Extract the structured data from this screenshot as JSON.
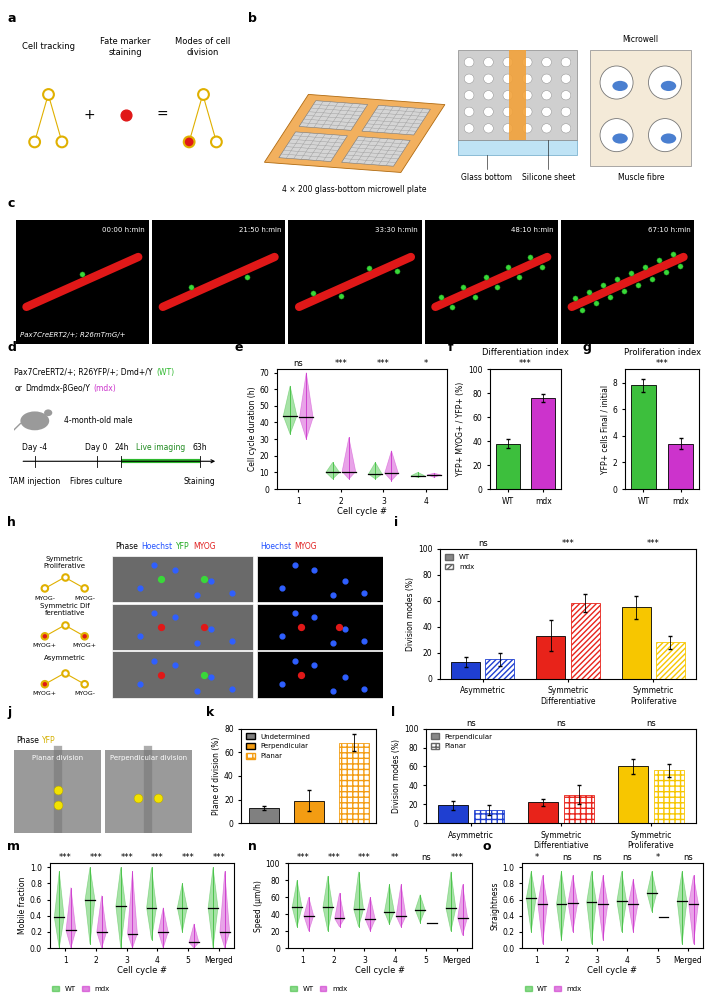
{
  "chart_data": [
    {
      "panel": "e",
      "type": "violin",
      "xlabel": "Cell cycle #",
      "ylabel": "Cell cycle duration (h)",
      "categories": [
        "1",
        "2",
        "3",
        "4"
      ],
      "ylim": [
        0,
        72
      ],
      "yticks": [
        0,
        10,
        20,
        30,
        40,
        50,
        60,
        70
      ],
      "annotations": [
        "ns",
        "***",
        "***",
        "*"
      ],
      "series": [
        {
          "color": "#3dbf3d",
          "median": [
            44,
            10,
            9,
            8
          ],
          "min": [
            33,
            6,
            6,
            7
          ],
          "max": [
            62,
            16,
            16,
            10
          ]
        },
        {
          "color": "#cc33cc",
          "median": [
            43,
            10.5,
            9.5,
            8.5
          ],
          "min": [
            30,
            6,
            5,
            7
          ],
          "max": [
            70,
            31,
            23,
            9.5
          ]
        }
      ]
    },
    {
      "panel": "f",
      "type": "bar",
      "title": "Differentiation index",
      "ylabel": "YFP+ MYOG+ / YFP+ (%)",
      "categories": [
        "WT",
        "mdx"
      ],
      "ylim": [
        0,
        100
      ],
      "yticks": [
        0,
        20,
        40,
        60,
        80,
        100
      ],
      "annotations": [
        "***"
      ],
      "series": [
        {
          "values": [
            38,
            76
          ],
          "errors": [
            4,
            3
          ],
          "colors": [
            "#3dbf3d",
            "#cc33cc"
          ]
        }
      ]
    },
    {
      "panel": "g",
      "type": "bar",
      "title": "Proliferation index",
      "ylabel": "YFP+ cells Final / initial",
      "categories": [
        "WT",
        "mdx"
      ],
      "ylim": [
        0,
        9
      ],
      "yticks": [
        0,
        2,
        4,
        6,
        8
      ],
      "annotations": [
        "***"
      ],
      "series": [
        {
          "values": [
            7.8,
            3.4
          ],
          "errors": [
            0.5,
            0.4
          ],
          "colors": [
            "#3dbf3d",
            "#cc33cc"
          ]
        }
      ]
    },
    {
      "panel": "i",
      "type": "bar",
      "ylabel": "Division modes (%)",
      "categories": [
        "Asymmetric",
        "Symmetric Differentiative",
        "Symmetric Proliferative"
      ],
      "ylim": [
        0,
        100
      ],
      "yticks": [
        0,
        20,
        40,
        60,
        80,
        100
      ],
      "legend": "upper left",
      "annotations": [
        "ns",
        "***",
        "***"
      ],
      "series": [
        {
          "name": "WT",
          "values": [
            13,
            33,
            55
          ],
          "errors": [
            4,
            12,
            9
          ],
          "colors": [
            "#1f3fd1",
            "#e8231a",
            "#f7c600"
          ]
        },
        {
          "name": "mdx",
          "values": [
            15,
            58,
            28
          ],
          "errors": [
            5,
            7,
            5
          ],
          "colors": [
            "#1f3fd1",
            "#e8231a",
            "#f7c600"
          ]
        }
      ]
    },
    {
      "panel": "k",
      "type": "bar",
      "ylabel": "Plane of division (%)",
      "categories": [
        "Undetermined",
        "Perpendicular",
        "Planar"
      ],
      "ylim": [
        0,
        80
      ],
      "yticks": [
        0,
        20,
        40,
        60,
        80
      ],
      "legend": "upper left",
      "tick_labels": "y",
      "series": [
        {
          "values": [
            13,
            19,
            68
          ],
          "errors": [
            2,
            9,
            7
          ],
          "colors": [
            "#808080",
            "#f39c12",
            "#f39c12"
          ]
        }
      ]
    },
    {
      "panel": "l",
      "type": "bar",
      "ylabel": "Division modes (%)",
      "categories": [
        "Asymmetric",
        "Symmetric Differentiative",
        "Symmetric Proliferative"
      ],
      "ylim": [
        0,
        100
      ],
      "yticks": [
        0,
        20,
        40,
        60,
        80,
        100
      ],
      "legend": "upper left",
      "annotations": [
        "ns",
        "ns",
        "ns"
      ],
      "series": [
        {
          "name": "Perpendicular",
          "values": [
            19,
            22,
            60
          ],
          "errors": [
            5,
            4,
            8
          ],
          "colors": [
            "#1f3fd1",
            "#e8231a",
            "#f7c600"
          ]
        },
        {
          "name": "Planar",
          "values": [
            14,
            30,
            56
          ],
          "errors": [
            5,
            10,
            7
          ],
          "colors": [
            "#1f3fd1",
            "#e8231a",
            "#f7c600"
          ]
        }
      ]
    },
    {
      "panel": "m",
      "type": "violin",
      "xlabel": "Cell cycle #",
      "ylabel": "Mobile fraction",
      "categories": [
        "1",
        "2",
        "3",
        "4",
        "5",
        "Merged"
      ],
      "ylim": [
        0,
        1.05
      ],
      "yticks": [
        {
          "value": 0,
          "label": "0.0"
        },
        {
          "value": 0.2,
          "label": "0.2"
        },
        {
          "value": 0.4,
          "label": "0.4"
        },
        {
          "value": 0.6,
          "label": "0.6"
        },
        {
          "value": 0.8,
          "label": "0.8"
        },
        {
          "value": 1,
          "label": "1.0"
        }
      ],
      "legend": "lower left",
      "annotations": [
        "***",
        "***",
        "***",
        "***",
        "***",
        "***"
      ],
      "series": [
        {
          "name": "WT",
          "color": "#3dbf3d",
          "median": [
            0.38,
            0.6,
            0.52,
            0.5,
            0.5,
            0.5
          ],
          "min": [
            0,
            0.05,
            0,
            0.1,
            0.2,
            0
          ],
          "max": [
            0.95,
            1.0,
            1.0,
            1.0,
            0.8,
            1.0
          ]
        },
        {
          "name": "mdx",
          "color": "#cc33cc",
          "median": [
            0.22,
            0.2,
            0.18,
            0.2,
            0.07,
            0.2
          ],
          "min": [
            0,
            0,
            0,
            0,
            0,
            0
          ],
          "max": [
            0.75,
            0.65,
            0.95,
            0.5,
            0.3,
            0.95
          ]
        }
      ]
    },
    {
      "panel": "n",
      "type": "violin",
      "xlabel": "Cell cycle #",
      "ylabel": "Speed (µm/h)",
      "categories": [
        "1",
        "2",
        "3",
        "4",
        "5",
        "Merged"
      ],
      "ylim": [
        0,
        100
      ],
      "yticks": [
        0,
        20,
        40,
        60,
        80,
        100
      ],
      "legend": "lower left",
      "annotations": [
        "***",
        "***",
        "***",
        "**",
        "ns",
        "***"
      ],
      "series": [
        {
          "name": "WT",
          "color": "#3dbf3d",
          "median": [
            48,
            48,
            46,
            43,
            45,
            47
          ],
          "min": [
            25,
            20,
            25,
            28,
            30,
            20
          ],
          "max": [
            80,
            85,
            90,
            75,
            63,
            90
          ]
        },
        {
          "name": "mdx",
          "color": "#cc33cc",
          "median": [
            38,
            35,
            34,
            38,
            30,
            36
          ],
          "min": [
            20,
            25,
            20,
            25,
            30,
            15
          ],
          "max": [
            60,
            65,
            60,
            75,
            30,
            75
          ]
        }
      ]
    },
    {
      "panel": "o",
      "type": "violin",
      "xlabel": "Cell cycle #",
      "ylabel": "Straightness",
      "categories": [
        "1",
        "2",
        "3",
        "4",
        "5",
        "Merged"
      ],
      "ylim": [
        0,
        1.05
      ],
      "yticks": [
        {
          "value": 0,
          "label": "0.0"
        },
        {
          "value": 0.2,
          "label": "0.2"
        },
        {
          "value": 0.4,
          "label": "0.4"
        },
        {
          "value": 0.6,
          "label": "0.6"
        },
        {
          "value": 0.8,
          "label": "0.8"
        },
        {
          "value": 1,
          "label": "1.0"
        }
      ],
      "legend": "lower left",
      "annotations": [
        "*",
        "ns",
        "ns",
        "ns",
        "*",
        "ns"
      ],
      "series": [
        {
          "name": "WT",
          "color": "#3dbf3d",
          "median": [
            0.62,
            0.55,
            0.57,
            0.58,
            0.68,
            0.58
          ],
          "min": [
            0.2,
            0.1,
            0.05,
            0.2,
            0.45,
            0.05
          ],
          "max": [
            0.95,
            0.95,
            0.95,
            0.95,
            0.95,
            0.95
          ]
        },
        {
          "name": "mdx",
          "color": "#cc33cc",
          "median": [
            0.55,
            0.56,
            0.55,
            0.55,
            0.39,
            0.55
          ],
          "min": [
            0.05,
            0.2,
            0.1,
            0.2,
            0.39,
            0.05
          ],
          "max": [
            0.9,
            0.9,
            0.9,
            0.85,
            0.39,
            0.9
          ]
        }
      ]
    }
  ],
  "diagrams": {
    "a": {
      "panel": "a",
      "steps": [
        "Cell tracking",
        "Fate marker staining",
        "Modes of cell division"
      ],
      "operators": [
        "+",
        "="
      ]
    },
    "b": {
      "panel": "b",
      "plate": "4 × 200 glass-bottom microwell plate",
      "layers": [
        "Glass bottom",
        "Silicone sheet"
      ],
      "wells": [
        "Microwell",
        "Muscle fibre"
      ]
    },
    "c": {
      "panel": "c",
      "genotype": "Pax7CreERT2/+; R26mTmG/+",
      "timestamps": [
        "00:00 h:min",
        "21:50 h:min",
        "33:30 h:min",
        "48:10 h:min",
        "67:10 h:min"
      ]
    },
    "d": {
      "panel": "d",
      "lines": [
        [
          {
            "text": "Pax7CreERT2/+; R26YFP/+; Dmd+/Y"
          },
          {
            "text": "(WT)",
            "color": "#2eb82e"
          }
        ],
        [
          {
            "text": "or"
          },
          {
            "text": "Dmdmdx-βGeo/Y"
          },
          {
            "text": "(mdx)",
            "color": "#cc33cc"
          }
        ]
      ],
      "animal": "4-month-old male",
      "timeline": [
        {
          "time": "Day -4",
          "event": "TAM injection"
        },
        {
          "time": "Day 0",
          "event": "Fibres culture"
        },
        {
          "time": "24h",
          "event": "Live imaging"
        },
        {
          "time": "63h",
          "event": "Staining"
        }
      ]
    },
    "h": {
      "panel": "h",
      "header_left": [
        {
          "text": "Phase",
          "color": "#000000"
        },
        {
          "text": "Hoechst",
          "color": "#1f4fff"
        },
        {
          "text": "YFP",
          "color": "#22aa22"
        },
        {
          "text": "MYOG",
          "color": "#e02020"
        }
      ],
      "header_right": [
        {
          "text": "Hoechst",
          "color": "#1f4fff"
        },
        {
          "text": "MYOG",
          "color": "#e02020"
        }
      ],
      "rows": [
        {
          "label": "Symmetric Proliferative",
          "children": [
            "MYOG-",
            "MYOG-"
          ]
        },
        {
          "label": "Symmetric Differentiative",
          "children": [
            "MYOG+",
            "MYOG+"
          ]
        },
        {
          "label": "Asymmetric",
          "children": [
            "MYOG+",
            "MYOG-"
          ]
        }
      ]
    },
    "j": {
      "panel": "j",
      "channels": [
        {
          "text": "Phase",
          "color": "#000000"
        },
        {
          "text": "YFP",
          "color": "#d4b000"
        }
      ],
      "images": [
        "Planar division",
        "Perpendicular division"
      ]
    }
  }
}
